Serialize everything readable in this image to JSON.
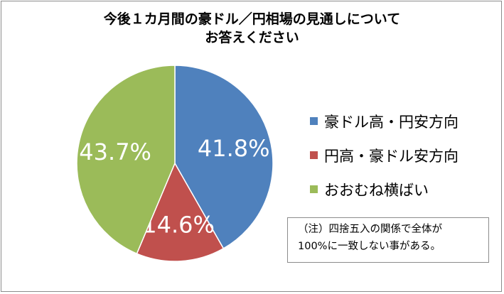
{
  "title_lines": [
    "今後１カ月間の豪ドル／円相場の見通しについて",
    "お答えください"
  ],
  "chart_data": {
    "type": "pie",
    "title": "今後１カ月間の豪ドル／円相場の見通しについて お答えください",
    "categories": [
      "豪ドル高・円安方向",
      "円高・豪ドル安方向",
      "おおむね横ばい"
    ],
    "values": [
      41.8,
      14.6,
      43.7
    ],
    "value_labels": [
      "41.8%",
      "14.6%",
      "43.7%"
    ],
    "colors": [
      "#4f81bd",
      "#c0504d",
      "#9bbb59"
    ],
    "start": "12 o'clock, clockwise",
    "legend_position": "right"
  },
  "note_lines": [
    "（注）四捨五入の関係で全体が",
    "100%に一致しない事がある。"
  ]
}
